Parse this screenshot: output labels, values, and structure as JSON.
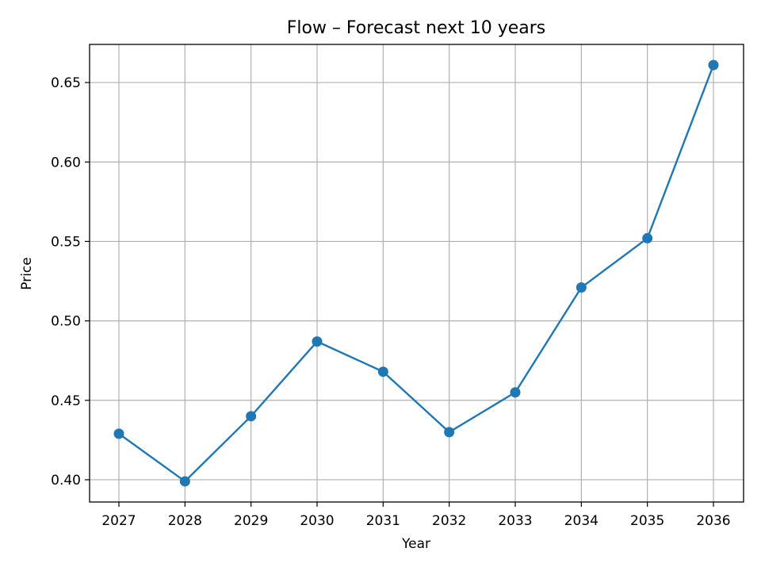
{
  "chart_data": {
    "type": "line",
    "title": "Flow – Forecast next 10 years",
    "xlabel": "Year",
    "ylabel": "Price",
    "x": [
      "2027",
      "2028",
      "2029",
      "2030",
      "2031",
      "2032",
      "2033",
      "2034",
      "2035",
      "2036"
    ],
    "series": [
      {
        "values": [
          0.429,
          0.399,
          0.44,
          0.487,
          0.468,
          0.43,
          0.455,
          0.521,
          0.552,
          0.661
        ],
        "color": "#1f77b4",
        "marker": "circle"
      }
    ],
    "ylim": [
      0.386,
      0.674
    ],
    "yticks": [
      0.4,
      0.45,
      0.5,
      0.55,
      0.6,
      0.65
    ],
    "ytick_labels": [
      "0.40",
      "0.45",
      "0.50",
      "0.55",
      "0.60",
      "0.65"
    ],
    "grid": true,
    "legend": false
  }
}
